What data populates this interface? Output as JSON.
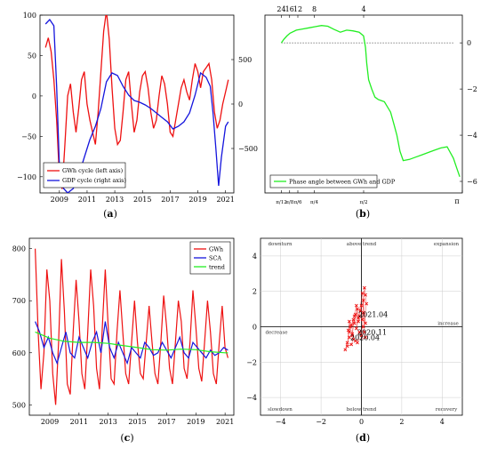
{
  "panels": {
    "a": {
      "label_open": "(",
      "label_letter": "a",
      "label_close": ")"
    },
    "b": {
      "label_open": "(",
      "label_letter": "b",
      "label_close": ")"
    },
    "c": {
      "label_open": "(",
      "label_letter": "c",
      "label_close": ")"
    },
    "d": {
      "label_open": "(",
      "label_letter": "d",
      "label_close": ")"
    }
  },
  "chart_data": [
    {
      "id": "a",
      "type": "line",
      "xlim": [
        2007.6,
        2021.6
      ],
      "x_ticks": [
        "2009",
        "2011",
        "2013",
        "2015",
        "2017",
        "2019",
        "2021"
      ],
      "ylim_left": [
        -120,
        100
      ],
      "y_ticks_left": [
        "100",
        "50",
        "0",
        "−50",
        "−100"
      ],
      "ylim_right": [
        -1000,
        1000
      ],
      "y_ticks_right": [
        "500",
        "0",
        "−500"
      ],
      "legend": {
        "position": "lower-left"
      },
      "series": [
        {
          "name": "GWh cycle (left axis)",
          "axis": "left",
          "color": "#ee1111",
          "x": [
            2008.0,
            2008.2,
            2008.4,
            2008.6,
            2008.8,
            2009.0,
            2009.2,
            2009.4,
            2009.6,
            2009.8,
            2010.0,
            2010.2,
            2010.4,
            2010.6,
            2010.8,
            2011.0,
            2011.2,
            2011.4,
            2011.6,
            2011.8,
            2012.0,
            2012.2,
            2012.4,
            2012.6,
            2012.8,
            2013.0,
            2013.2,
            2013.4,
            2013.6,
            2013.8,
            2014.0,
            2014.2,
            2014.4,
            2014.6,
            2014.8,
            2015.0,
            2015.2,
            2015.4,
            2015.6,
            2015.8,
            2016.0,
            2016.2,
            2016.4,
            2016.6,
            2016.8,
            2017.0,
            2017.2,
            2017.4,
            2017.6,
            2017.8,
            2018.0,
            2018.2,
            2018.4,
            2018.6,
            2018.8,
            2019.0,
            2019.2,
            2019.4,
            2019.6,
            2019.8,
            2020.0,
            2020.2,
            2020.4,
            2020.6,
            2020.8,
            2021.0,
            2021.2
          ],
          "y": [
            60,
            72,
            55,
            20,
            -30,
            -100,
            -115,
            -60,
            0,
            15,
            -20,
            -45,
            -15,
            20,
            30,
            -10,
            -30,
            -45,
            -60,
            -20,
            30,
            80,
            105,
            70,
            10,
            -40,
            -60,
            -55,
            -20,
            20,
            30,
            -10,
            -45,
            -30,
            5,
            25,
            30,
            10,
            -20,
            -40,
            -30,
            0,
            25,
            15,
            -10,
            -45,
            -50,
            -30,
            -10,
            10,
            20,
            5,
            -5,
            20,
            40,
            30,
            10,
            30,
            35,
            40,
            20,
            -20,
            -40,
            -30,
            -10,
            5,
            20
          ]
        },
        {
          "name": "GDP cycle (right axis)",
          "axis": "right",
          "color": "#1515dd",
          "x": [
            2008.0,
            2008.3,
            2008.6,
            2008.8,
            2009.0,
            2009.3,
            2009.6,
            2010.0,
            2010.4,
            2010.8,
            2011.2,
            2011.6,
            2012.0,
            2012.4,
            2012.8,
            2013.2,
            2013.6,
            2014.0,
            2014.4,
            2014.8,
            2015.2,
            2015.6,
            2016.0,
            2016.4,
            2016.8,
            2017.2,
            2017.6,
            2018.0,
            2018.4,
            2018.8,
            2019.2,
            2019.6,
            2019.9,
            2020.1,
            2020.3,
            2020.5,
            2020.7,
            2021.0,
            2021.2
          ],
          "y": [
            900,
            950,
            880,
            200,
            -700,
            -950,
            -1000,
            -950,
            -800,
            -600,
            -400,
            -250,
            -50,
            250,
            350,
            320,
            200,
            100,
            40,
            20,
            -10,
            -50,
            -100,
            -150,
            -200,
            -280,
            -250,
            -200,
            -100,
            100,
            350,
            300,
            200,
            -100,
            -500,
            -920,
            -600,
            -250,
            -200
          ]
        }
      ]
    },
    {
      "id": "b",
      "type": "line",
      "xlim": [
        0,
        3.1416
      ],
      "top_ticks": [
        "24",
        "16",
        "12",
        "8",
        "4"
      ],
      "x_ticks": [
        "π/12",
        "π/8",
        "π/6",
        "π/4",
        "π/2",
        "π"
      ],
      "ylim": [
        -6.5,
        1.2
      ],
      "y_ticks": [
        "0",
        "−2",
        "−4",
        "−6"
      ],
      "reference_line": 0,
      "legend": {
        "position": "lower-left"
      },
      "series": [
        {
          "name": "Phase angle between GWh and GDP",
          "color": "#22ee22",
          "x": [
            0.26,
            0.3,
            0.35,
            0.4,
            0.5,
            0.6,
            0.7,
            0.8,
            0.9,
            1.0,
            1.1,
            1.2,
            1.3,
            1.4,
            1.5,
            1.57,
            1.6,
            1.62,
            1.65,
            1.7,
            1.75,
            1.8,
            1.85,
            1.9,
            2.0,
            2.05,
            2.1,
            2.15,
            2.2,
            2.3,
            2.4,
            2.5,
            2.6,
            2.7,
            2.8,
            2.9,
            3.0,
            3.05,
            3.1
          ],
          "y": [
            0,
            0.15,
            0.3,
            0.42,
            0.55,
            0.6,
            0.65,
            0.7,
            0.75,
            0.72,
            0.58,
            0.46,
            0.55,
            0.52,
            0.46,
            0.3,
            -0.2,
            -0.9,
            -1.6,
            -2.0,
            -2.35,
            -2.45,
            -2.5,
            -2.55,
            -3.0,
            -3.5,
            -4.0,
            -4.7,
            -5.1,
            -5.05,
            -4.95,
            -4.85,
            -4.75,
            -4.65,
            -4.55,
            -4.5,
            -5.0,
            -5.4,
            -5.8
          ]
        }
      ]
    },
    {
      "id": "c",
      "type": "line",
      "xlim": [
        2007.6,
        2021.6
      ],
      "x_ticks": [
        "2009",
        "2011",
        "2013",
        "2015",
        "2017",
        "2019",
        "2021"
      ],
      "ylim": [
        480,
        820
      ],
      "y_ticks": [
        "800",
        "700",
        "600",
        "500"
      ],
      "legend": {
        "position": "top-right"
      },
      "series": [
        {
          "name": "GWh",
          "color": "#ee1111",
          "x": [
            2008.0,
            2008.2,
            2008.4,
            2008.6,
            2008.8,
            2009.0,
            2009.2,
            2009.4,
            2009.6,
            2009.8,
            2010.0,
            2010.2,
            2010.4,
            2010.6,
            2010.8,
            2011.0,
            2011.2,
            2011.4,
            2011.6,
            2011.8,
            2012.0,
            2012.2,
            2012.4,
            2012.6,
            2012.8,
            2013.0,
            2013.2,
            2013.4,
            2013.6,
            2013.8,
            2014.0,
            2014.2,
            2014.4,
            2014.6,
            2014.8,
            2015.0,
            2015.2,
            2015.4,
            2015.6,
            2015.8,
            2016.0,
            2016.2,
            2016.4,
            2016.6,
            2016.8,
            2017.0,
            2017.2,
            2017.4,
            2017.6,
            2017.8,
            2018.0,
            2018.2,
            2018.4,
            2018.6,
            2018.8,
            2019.0,
            2019.2,
            2019.4,
            2019.6,
            2019.8,
            2020.0,
            2020.2,
            2020.4,
            2020.6,
            2020.8,
            2021.0,
            2021.2
          ],
          "y": [
            800,
            640,
            530,
            600,
            760,
            700,
            560,
            500,
            620,
            780,
            680,
            540,
            520,
            640,
            740,
            660,
            560,
            530,
            640,
            760,
            690,
            570,
            530,
            650,
            760,
            650,
            550,
            540,
            640,
            720,
            640,
            560,
            540,
            620,
            700,
            620,
            560,
            550,
            620,
            690,
            620,
            560,
            540,
            620,
            710,
            650,
            570,
            540,
            620,
            700,
            660,
            570,
            550,
            620,
            720,
            650,
            570,
            545,
            620,
            700,
            640,
            560,
            540,
            620,
            690,
            610,
            590
          ]
        },
        {
          "name": "SCA",
          "color": "#1515dd",
          "x": [
            2008.0,
            2008.3,
            2008.6,
            2008.9,
            2009.2,
            2009.5,
            2009.8,
            2010.1,
            2010.4,
            2010.7,
            2011.0,
            2011.3,
            2011.6,
            2011.9,
            2012.2,
            2012.5,
            2012.8,
            2013.1,
            2013.4,
            2013.7,
            2014.0,
            2014.3,
            2014.6,
            2014.9,
            2015.2,
            2015.5,
            2015.8,
            2016.1,
            2016.4,
            2016.7,
            2017.0,
            2017.3,
            2017.6,
            2017.9,
            2018.2,
            2018.5,
            2018.8,
            2019.1,
            2019.4,
            2019.7,
            2020.0,
            2020.3,
            2020.6,
            2020.9,
            2021.2
          ],
          "y": [
            660,
            640,
            610,
            630,
            600,
            580,
            610,
            640,
            600,
            590,
            630,
            610,
            590,
            620,
            640,
            600,
            660,
            610,
            590,
            620,
            600,
            580,
            610,
            600,
            590,
            620,
            610,
            595,
            600,
            620,
            605,
            590,
            610,
            630,
            600,
            590,
            620,
            610,
            600,
            590,
            605,
            595,
            600,
            610,
            605
          ]
        },
        {
          "name": "trend",
          "color": "#22ee22",
          "x": [
            2008.0,
            2009.0,
            2010.0,
            2011.0,
            2012.0,
            2013.0,
            2014.0,
            2015.0,
            2016.0,
            2017.0,
            2018.0,
            2019.0,
            2020.0,
            2021.0,
            2021.2
          ],
          "y": [
            640,
            628,
            622,
            620,
            620,
            618,
            614,
            610,
            606,
            605,
            607,
            606,
            602,
            600,
            600
          ]
        }
      ]
    },
    {
      "id": "d",
      "type": "scatter",
      "xlim": [
        -5,
        5
      ],
      "ylim": [
        -5,
        5
      ],
      "x_ticks": [
        "−4",
        "−2",
        "0",
        "2",
        "4"
      ],
      "y_ticks": [
        "4",
        "2",
        "0",
        "−2",
        "−4"
      ],
      "quadrant_labels": {
        "top_left": "downturn",
        "top_center": "above trend",
        "top_right": "expansion",
        "middle_left": "decrease",
        "middle_right": "increase",
        "bottom_left": "slowdown",
        "bottom_center": "below trend",
        "bottom_right": "recovery"
      },
      "point_labels": [
        {
          "text": "2021.04",
          "x": -0.15,
          "y": 0.55
        },
        {
          "text": "2020.11",
          "x": -0.2,
          "y": -0.45
        },
        {
          "text": "2020.04",
          "x": -0.55,
          "y": -0.75
        }
      ],
      "series": [
        {
          "name": "",
          "color": "#ee1111",
          "marker": "x",
          "x": [
            -0.8,
            -0.7,
            -0.6,
            -0.65,
            -0.5,
            -0.4,
            -0.45,
            -0.3,
            -0.35,
            -0.2,
            -0.25,
            -0.1,
            -0.15,
            0.0,
            -0.05,
            0.1,
            0.05,
            0.15,
            0.2,
            0.25,
            0.1,
            0.15,
            0.2,
            -0.3,
            -0.45,
            -0.55,
            -0.6,
            -0.7,
            -0.5,
            -0.4,
            -0.2,
            -0.1,
            0.0,
            0.1,
            0.2,
            0.05,
            -0.15,
            -0.25,
            -0.35,
            -0.6
          ],
          "y": [
            -1.3,
            -0.9,
            -0.6,
            -0.2,
            0.1,
            0.4,
            -0.4,
            0.7,
            0.2,
            1.0,
            -0.1,
            0.6,
            0.3,
            1.2,
            0.9,
            1.5,
            0.4,
            2.2,
            1.8,
            1.3,
            0.0,
            -0.3,
            -0.6,
            -0.8,
            -0.5,
            0.0,
            0.3,
            -1.1,
            -1.0,
            -0.7,
            -0.9,
            -0.3,
            -0.5,
            0.8,
            0.2,
            1.9,
            0.5,
            1.2,
            0.6,
            -0.3
          ]
        }
      ]
    }
  ]
}
